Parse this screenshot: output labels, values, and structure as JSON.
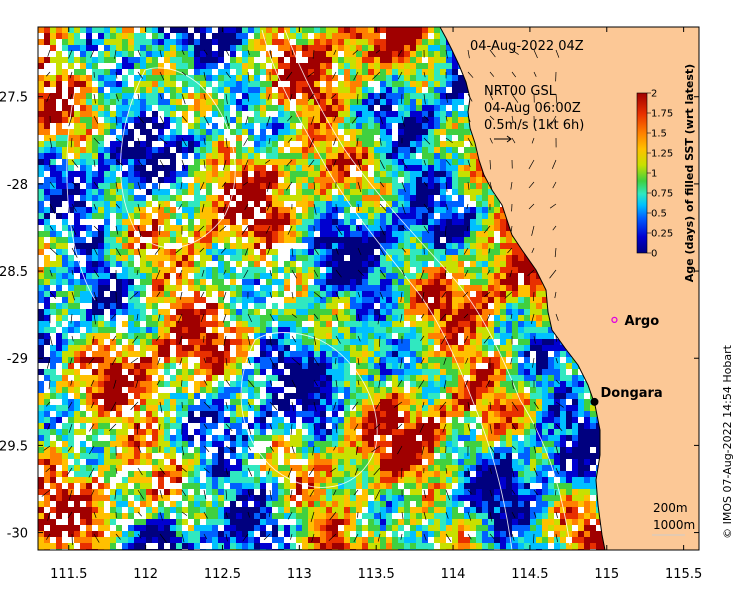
{
  "map": {
    "date_label": "04-Aug-2022 04Z",
    "current_source": "NRT00 GSL",
    "current_time": "04-Aug 06:00Z",
    "current_scale": "0.5m/s (1kt 6h)",
    "places": [
      {
        "name": "Argo",
        "lon": 115.05,
        "lat": -28.78,
        "marker": "ring"
      },
      {
        "name": "Dongara",
        "lon": 114.92,
        "lat": -29.25,
        "marker": "dot"
      }
    ],
    "isobaths": [
      "200m",
      "1000m"
    ],
    "credit": "© IMOS 07-Aug-2022 14:54 Hobart",
    "x_ticks": [
      "111.5",
      "112",
      "112.5",
      "113",
      "113.5",
      "114",
      "114.5",
      "115",
      "115.5"
    ],
    "y_ticks": [
      "-27.5",
      "-28",
      "-28.5",
      "-29",
      "-29.5",
      "-30"
    ],
    "lon_range": [
      111.3,
      115.6
    ],
    "lat_range": [
      -30.1,
      -27.1
    ],
    "colorbar": {
      "label": "Age (days) of filled SST (wrt latest)",
      "ticks": [
        "0",
        "0.25",
        "0.5",
        "0.75",
        "1",
        "1.25",
        "1.5",
        "1.75",
        "2"
      ],
      "range": [
        0,
        2
      ],
      "colors": [
        "#00007f",
        "#0000d0",
        "#0060ff",
        "#00c0ff",
        "#30e8c0",
        "#40d040",
        "#c8e000",
        "#ffc000",
        "#ff8000",
        "#e83000",
        "#a00000"
      ]
    },
    "colors": {
      "land": "#fcc896",
      "coast": "#000000",
      "contour": "#ffffff",
      "no_data": "#ffffff"
    }
  }
}
